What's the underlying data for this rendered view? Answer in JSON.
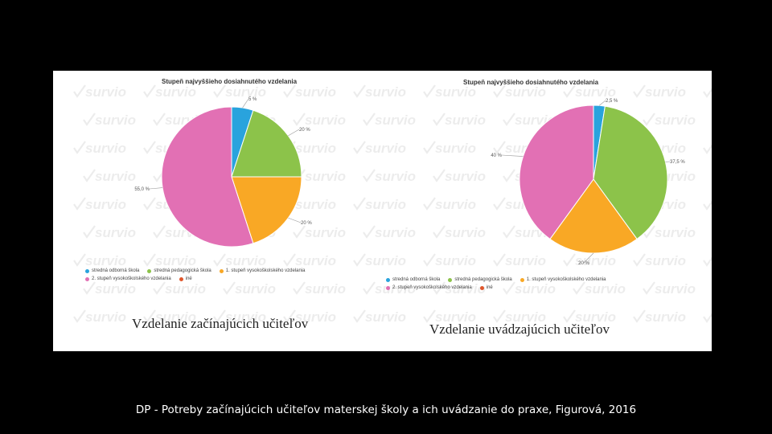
{
  "watermark": {
    "text": "survio"
  },
  "colors": {
    "blue": "#29a3dd",
    "green": "#8cc34a",
    "orange": "#f9a825",
    "pink": "#e270b4",
    "red": "#e0562b"
  },
  "chart_data": [
    {
      "type": "pie",
      "title": "Stupeň najvyššieho dosiahnutého vzdelania",
      "caption": "Vzdelanie začínajúcich učiteľov",
      "slices": [
        {
          "label": "stredná odborná škola",
          "value": 5,
          "display": "5 %",
          "color": "#29a3dd"
        },
        {
          "label": "stredná pedagogická škola",
          "value": 20,
          "display": "20 %",
          "color": "#8cc34a"
        },
        {
          "label": "1. stupeň vysokoškolského vzdelania",
          "value": 20,
          "display": "20 %",
          "color": "#f9a825"
        },
        {
          "label": "2. stupeň vysokoškolského vzdelania",
          "value": 55,
          "display": "55,0 %",
          "color": "#e270b4"
        },
        {
          "label": "iné",
          "value": 0,
          "display": "",
          "color": "#e0562b"
        }
      ],
      "legend": "bottom"
    },
    {
      "type": "pie",
      "title": "Stupeň najvyššieho dosiahnutého vzdelania",
      "caption": "Vzdelanie uvádzajúcich učiteľov",
      "slices": [
        {
          "label": "stredná odborná škola",
          "value": 2.5,
          "display": "2,5 %",
          "color": "#29a3dd"
        },
        {
          "label": "stredná pedagogická škola",
          "value": 37.5,
          "display": "37,5 %",
          "color": "#8cc34a"
        },
        {
          "label": "1. stupeň vysokoškolského vzdelania",
          "value": 20,
          "display": "20 %",
          "color": "#f9a825"
        },
        {
          "label": "2. stupeň vysokoškolského vzdelania",
          "value": 40,
          "display": "40 %",
          "color": "#e270b4"
        },
        {
          "label": "iné",
          "value": 0,
          "display": "",
          "color": "#e0562b"
        }
      ],
      "legend": "bottom"
    }
  ],
  "footer": "DP - Potreby začínajúcich učiteľov materskej školy a ich uvádzanie do praxe, Figurová, 2016"
}
